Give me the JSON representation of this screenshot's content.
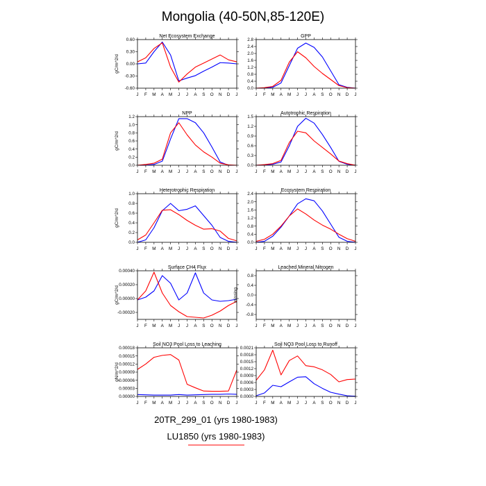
{
  "title": "Mongolia (40-50N,85-120E)",
  "months": [
    "J",
    "F",
    "M",
    "A",
    "M",
    "J",
    "J",
    "A",
    "S",
    "O",
    "N",
    "D",
    "J"
  ],
  "colors": {
    "s1": "#0000ff",
    "s2": "#ff0000"
  },
  "legend": {
    "s1": {
      "label": "20TR_299_01 (yrs 1980-1983)",
      "color": "#0000ff"
    },
    "s2": {
      "label": "LU1850 (yrs 1980-1983)",
      "color": "#ff0000"
    }
  },
  "chart_data": [
    {
      "type": "line",
      "title": "Net Ecosystem Exchange",
      "ylabel": "gC/m^2/d",
      "ylim": [
        -0.6,
        0.6
      ],
      "yticks": [
        "-0.60",
        "-0.30",
        "0.00",
        "0.30",
        "0.60"
      ],
      "series": [
        {
          "name": "20TR_299_01 (yrs 1980-1983)",
          "values": [
            0.0,
            0.02,
            0.3,
            0.54,
            0.22,
            -0.42,
            -0.35,
            -0.29,
            -0.18,
            -0.08,
            0.03,
            0.02,
            0.0
          ]
        },
        {
          "name": "LU1850 (yrs 1980-1983)",
          "values": [
            0.05,
            0.15,
            0.38,
            0.52,
            -0.08,
            -0.45,
            -0.25,
            -0.08,
            0.02,
            0.12,
            0.22,
            0.1,
            0.05
          ]
        }
      ]
    },
    {
      "type": "line",
      "title": "GPP",
      "ylabel": "",
      "ylim": [
        0,
        2.8
      ],
      "yticks": [
        "0.0",
        "0.4",
        "0.8",
        "1.2",
        "1.6",
        "2.0",
        "2.4",
        "2.8"
      ],
      "series": [
        {
          "name": "20TR_299_01 (yrs 1980-1983)",
          "values": [
            0.0,
            0.01,
            0.05,
            0.3,
            1.3,
            2.3,
            2.6,
            2.35,
            1.8,
            1.0,
            0.2,
            0.05,
            0.0
          ]
        },
        {
          "name": "LU1850 (yrs 1980-1983)",
          "values": [
            0.0,
            0.03,
            0.1,
            0.45,
            1.5,
            2.1,
            1.75,
            1.25,
            0.85,
            0.5,
            0.15,
            0.03,
            0.0
          ]
        }
      ]
    },
    {
      "type": "line",
      "title": "NPP",
      "ylabel": "gC/m^2/d",
      "ylim": [
        0,
        1.2
      ],
      "yticks": [
        "0.0",
        "0.2",
        "0.4",
        "0.6",
        "0.8",
        "1.0",
        "1.2"
      ],
      "series": [
        {
          "name": "20TR_299_01 (yrs 1980-1983)",
          "values": [
            0.0,
            0.0,
            0.02,
            0.1,
            0.65,
            1.15,
            1.15,
            1.05,
            0.8,
            0.45,
            0.08,
            0.0,
            0.0
          ]
        },
        {
          "name": "LU1850 (yrs 1980-1983)",
          "values": [
            0.0,
            0.02,
            0.05,
            0.15,
            0.8,
            1.05,
            0.75,
            0.5,
            0.33,
            0.2,
            0.05,
            0.01,
            0.0
          ]
        }
      ]
    },
    {
      "type": "line",
      "title": "Autotrophic Respiration",
      "ylabel": "",
      "ylim": [
        0,
        1.5
      ],
      "yticks": [
        "0.0",
        "0.3",
        "0.6",
        "0.9",
        "1.2",
        "1.5"
      ],
      "series": [
        {
          "name": "20TR_299_01 (yrs 1980-1983)",
          "values": [
            0.0,
            0.01,
            0.03,
            0.1,
            0.6,
            1.2,
            1.45,
            1.3,
            0.95,
            0.55,
            0.12,
            0.03,
            0.0
          ]
        },
        {
          "name": "LU1850 (yrs 1980-1983)",
          "values": [
            0.0,
            0.02,
            0.05,
            0.15,
            0.7,
            1.05,
            1.0,
            0.75,
            0.55,
            0.35,
            0.13,
            0.05,
            0.0
          ]
        }
      ]
    },
    {
      "type": "line",
      "title": "Heterotrophic Respiration",
      "ylabel": "gC/m^2/d",
      "ylim": [
        0,
        1.0
      ],
      "yticks": [
        "0.0",
        "0.2",
        "0.4",
        "0.6",
        "0.8",
        "1.0"
      ],
      "series": [
        {
          "name": "20TR_299_01 (yrs 1980-1983)",
          "values": [
            0.0,
            0.05,
            0.3,
            0.65,
            0.8,
            0.65,
            0.68,
            0.75,
            0.55,
            0.35,
            0.1,
            0.02,
            0.0
          ]
        },
        {
          "name": "LU1850 (yrs 1980-1983)",
          "values": [
            0.05,
            0.15,
            0.4,
            0.66,
            0.67,
            0.57,
            0.45,
            0.35,
            0.27,
            0.28,
            0.23,
            0.08,
            0.03
          ]
        }
      ]
    },
    {
      "type": "line",
      "title": "Ecosystem Respiration",
      "ylabel": "",
      "ylim": [
        0,
        2.4
      ],
      "yticks": [
        "0.0",
        "0.4",
        "0.8",
        "1.2",
        "1.6",
        "2.0",
        "2.4"
      ],
      "series": [
        {
          "name": "20TR_299_01 (yrs 1980-1983)",
          "values": [
            0.0,
            0.05,
            0.3,
            0.75,
            1.3,
            1.9,
            2.15,
            2.05,
            1.55,
            0.9,
            0.25,
            0.05,
            0.0
          ]
        },
        {
          "name": "LU1850 (yrs 1980-1983)",
          "values": [
            0.05,
            0.15,
            0.4,
            0.8,
            1.3,
            1.65,
            1.4,
            1.1,
            0.85,
            0.65,
            0.4,
            0.18,
            0.05
          ]
        }
      ]
    },
    {
      "type": "line",
      "title": "Surface CH4 Flux",
      "ylabel": "gC/m^2/d",
      "ylim": [
        -0.0003,
        0.0004
      ],
      "yticks": [
        "-0.00020",
        "0.00000",
        "0.00020",
        "0.00040"
      ],
      "series": [
        {
          "name": "20TR_299_01 (yrs 1980-1983)",
          "values": [
            -2e-05,
            2e-05,
            0.00011,
            0.00033,
            0.00022,
            -2e-05,
            8e-05,
            0.00037,
            8e-05,
            -2e-05,
            -4e-05,
            -3e-05,
            -1e-05
          ]
        },
        {
          "name": "LU1850 (yrs 1980-1983)",
          "values": [
            -2e-05,
            0.00011,
            0.00038,
            8e-05,
            -0.0001,
            -0.00019,
            -0.00026,
            -0.00027,
            -0.00028,
            -0.00024,
            -0.00018,
            -0.0001,
            -4e-05
          ]
        }
      ]
    },
    {
      "type": "line",
      "title": "Leached Mineral Nitrogen",
      "ylabel": "missing",
      "ylim": [
        -1.0,
        1.0
      ],
      "yticks": [
        "-0.8",
        "-0.4",
        "0.0",
        "0.4",
        "0.8"
      ],
      "series": []
    },
    {
      "type": "line",
      "title": "Soil NO3 Pool Loss to Leaching",
      "ylabel": "gN/m^2/d",
      "ylim": [
        0,
        0.00018
      ],
      "yticks": [
        "0.00000",
        "0.00003",
        "0.00006",
        "0.00009",
        "0.00012",
        "0.00015",
        "0.00018"
      ],
      "series": [
        {
          "name": "20TR_299_01 (yrs 1980-1983)",
          "values": [
            7e-06,
            6e-06,
            5e-06,
            5e-06,
            5e-06,
            7e-06,
            5e-06,
            6e-06,
            7e-06,
            8e-06,
            8e-06,
            9e-06,
            8e-06
          ]
        },
        {
          "name": "LU1850 (yrs 1980-1983)",
          "values": [
            0.0001,
            0.00012,
            0.000145,
            0.000152,
            0.000155,
            0.000135,
            4.5e-05,
            3.2e-05,
            2e-05,
            1.9e-05,
            1.9e-05,
            2e-05,
            9.8e-05
          ]
        }
      ]
    },
    {
      "type": "line",
      "title": "Soil NO3 Pool Loss to Runoff",
      "ylabel": "",
      "ylim": [
        0,
        0.0021
      ],
      "yticks": [
        "0.0000",
        "0.0003",
        "0.0006",
        "0.0009",
        "0.0012",
        "0.0015",
        "0.0018",
        "0.0021"
      ],
      "series": [
        {
          "name": "20TR_299_01 (yrs 1980-1983)",
          "values": [
            3e-05,
            0.00015,
            0.00048,
            0.00042,
            0.00063,
            0.00083,
            0.00085,
            0.00055,
            0.00035,
            0.00018,
            0.0001,
            3e-05,
            1e-05
          ]
        },
        {
          "name": "LU1850 (yrs 1980-1983)",
          "values": [
            0.0007,
            0.00115,
            0.002,
            0.00093,
            0.00155,
            0.00175,
            0.00133,
            0.00128,
            0.00115,
            0.00095,
            0.00063,
            0.00073,
            0.00075
          ]
        }
      ]
    }
  ]
}
